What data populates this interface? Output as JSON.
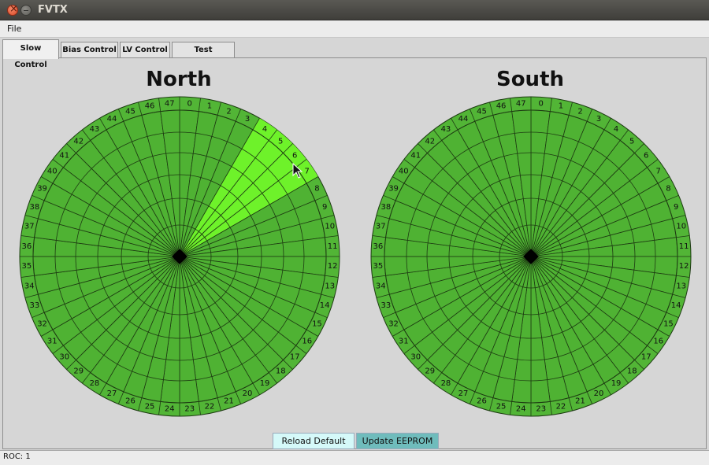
{
  "window": {
    "title": "FVTX"
  },
  "menu": {
    "file": "File"
  },
  "tabs": [
    {
      "label": "Slow Control",
      "active": true
    },
    {
      "label": "Bias Control",
      "active": false
    },
    {
      "label": "LV Control",
      "active": false
    },
    {
      "label": "Test Functions",
      "active": false
    }
  ],
  "wheels": [
    {
      "title": "North",
      "highlighted_wedges": [
        4,
        5,
        6,
        7
      ]
    },
    {
      "title": "South",
      "highlighted_wedges": []
    }
  ],
  "wedge_labels": [
    "0",
    "1",
    "2",
    "3",
    "4",
    "5",
    "6",
    "7",
    "8",
    "9",
    "10",
    "11",
    "12",
    "13",
    "14",
    "15",
    "16",
    "17",
    "18",
    "19",
    "20",
    "21",
    "22",
    "23",
    "24",
    "25",
    "26",
    "27",
    "28",
    "29",
    "30",
    "31",
    "32",
    "33",
    "34",
    "35",
    "36",
    "37",
    "38",
    "39",
    "40",
    "41",
    "42",
    "43",
    "44",
    "45",
    "46",
    "47"
  ],
  "buttons": {
    "reload": "Reload Default",
    "update": "Update EEPROM"
  },
  "status": {
    "text": "ROC: 1"
  },
  "colors": {
    "wedge": "#4fb233",
    "highlight": "#6ef22a",
    "outer_ring": "#52b536",
    "line": "#1d3a12"
  }
}
